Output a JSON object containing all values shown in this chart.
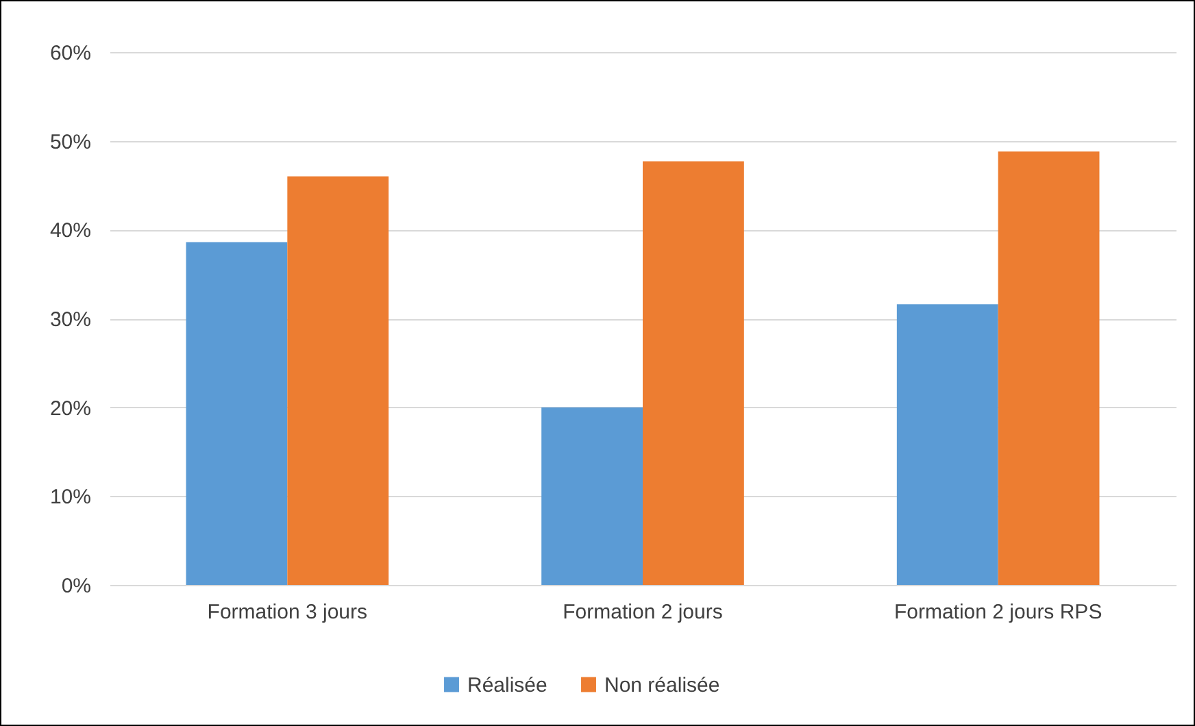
{
  "chart_data": {
    "type": "bar",
    "categories": [
      "Formation 3 jours",
      "Formation 2 jours",
      "Formation 2 jours RPS"
    ],
    "series": [
      {
        "name": "Réalisée",
        "color": "#5b9bd5",
        "values": [
          38.6,
          20,
          31.6
        ]
      },
      {
        "name": "Non réalisée",
        "color": "#ed7d31",
        "values": [
          46,
          47.7,
          48.8
        ]
      }
    ],
    "ylim": [
      0,
      60
    ],
    "yticks": [
      {
        "value": 0,
        "label": "0%"
      },
      {
        "value": 10,
        "label": "10%"
      },
      {
        "value": 20,
        "label": "20%"
      },
      {
        "value": 30,
        "label": "30%"
      },
      {
        "value": 40,
        "label": "40%"
      },
      {
        "value": 50,
        "label": "50%"
      },
      {
        "value": 60,
        "label": "60%"
      }
    ],
    "grid": "y",
    "legend": "bottom"
  }
}
